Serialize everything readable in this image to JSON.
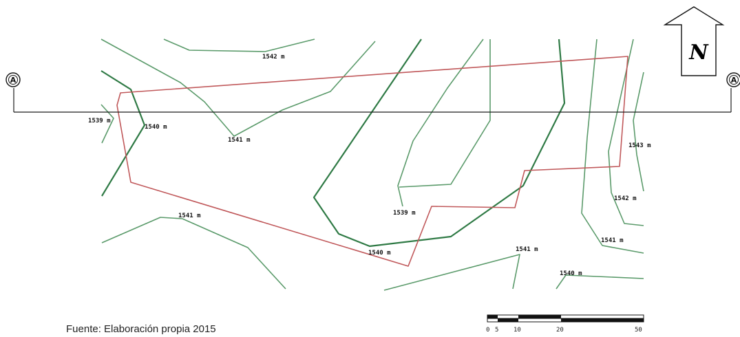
{
  "map": {
    "north_label": "N",
    "section_marker_left": "A",
    "section_marker_right": "A",
    "elevation_labels": [
      "1542 m",
      "1539 m",
      "1540 m",
      "1541 m",
      "1543 m",
      "1542 m",
      "1541 m",
      "1539 m",
      "1540 m",
      "1541 m",
      "1541 m",
      "1540 m"
    ],
    "scale_bar": {
      "ticks": [
        "0",
        "5",
        "10",
        "20",
        "50"
      ]
    },
    "source_note": "Fuente: Elaboración propia 2015",
    "colors": {
      "contour_light": "#5a9a6a",
      "contour_dark": "#2f7a45",
      "boundary": "#c0585a",
      "section_line": "#1a1a1a"
    }
  }
}
